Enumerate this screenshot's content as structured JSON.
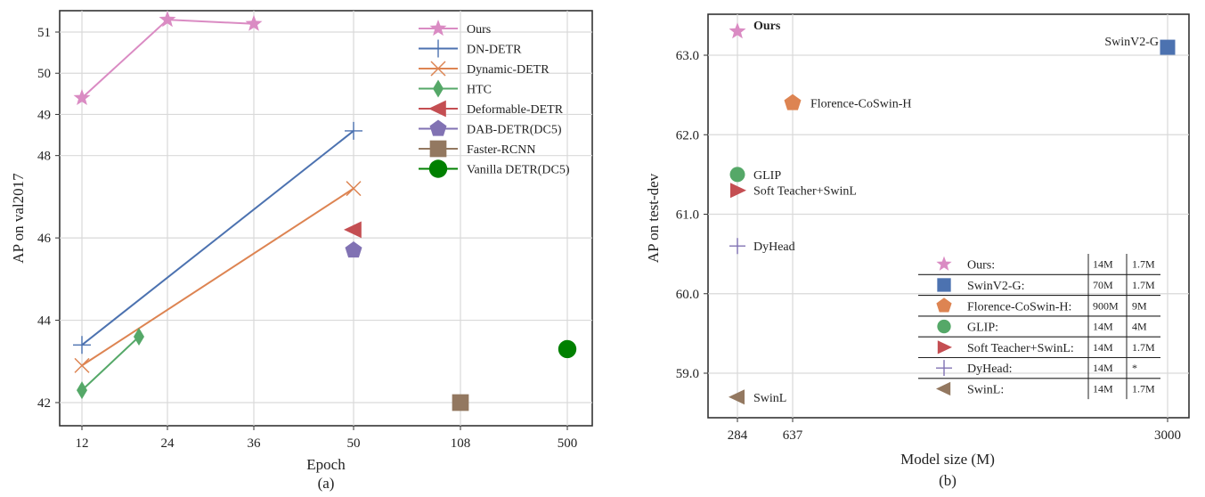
{
  "chart_data": [
    {
      "type": "line",
      "sublabel": "(a)",
      "xlabel": "Epoch",
      "ylabel": "AP on val2017",
      "x_ticks": [
        "12",
        "24",
        "36",
        "50",
        "108",
        "500"
      ],
      "y_ticks": [
        "42",
        "44",
        "46",
        "48",
        "49",
        "50",
        "51"
      ],
      "grid": true,
      "legend_position": "top-right",
      "series": [
        {
          "name": "Ours",
          "marker": "star",
          "color": "#da8bc3",
          "points": [
            {
              "x": "12",
              "y": 49.4
            },
            {
              "x": "24",
              "y": 51.3
            },
            {
              "x": "36",
              "y": 51.2
            }
          ]
        },
        {
          "name": "DN-DETR",
          "marker": "plus",
          "color": "#4c72b0",
          "points": [
            {
              "x": "12",
              "y": 43.4
            },
            {
              "x": "50",
              "y": 48.6
            }
          ]
        },
        {
          "name": "Dynamic-DETR",
          "marker": "x",
          "color": "#dd8452",
          "points": [
            {
              "x": "12",
              "y": 42.9
            },
            {
              "x": "50",
              "y": 47.2
            }
          ]
        },
        {
          "name": "HTC",
          "marker": "diamond",
          "color": "#55a868",
          "points": [
            {
              "x": "12",
              "y": 42.3
            },
            {
              "x": "20",
              "y": 43.6
            }
          ]
        },
        {
          "name": "Deformable-DETR",
          "marker": "triangle-left",
          "color": "#c44e52",
          "points": [
            {
              "x": "50",
              "y": 46.2
            }
          ]
        },
        {
          "name": "DAB-DETR(DC5)",
          "marker": "pentagon",
          "color": "#8172b3",
          "points": [
            {
              "x": "50",
              "y": 45.7
            }
          ]
        },
        {
          "name": "Faster-RCNN",
          "marker": "square",
          "color": "#937860",
          "points": [
            {
              "x": "108",
              "y": 42.0
            }
          ]
        },
        {
          "name": "Vanilla DETR(DC5)",
          "marker": "circle",
          "color": "#008000",
          "points": [
            {
              "x": "500",
              "y": 43.3
            }
          ]
        }
      ]
    },
    {
      "type": "scatter",
      "sublabel": "(b)",
      "xlabel": "Model size (M)",
      "ylabel": "AP on test-dev",
      "x_ticks": [
        "284",
        "637",
        "3000"
      ],
      "y_ticks": [
        "59.0",
        "60.0",
        "61.0",
        "62.0",
        "63.0"
      ],
      "ylim": [
        58.55,
        63.5
      ],
      "grid": true,
      "points": [
        {
          "label": "Ours",
          "x": 284,
          "y": 63.3,
          "marker": "star",
          "color": "#da8bc3",
          "bold": true
        },
        {
          "label": "SwinV2-G",
          "x": 3000,
          "y": 63.1,
          "marker": "square",
          "color": "#4c72b0",
          "bold": false
        },
        {
          "label": "Florence-CoSwin-H",
          "x": 637,
          "y": 62.4,
          "marker": "pentagon",
          "color": "#dd8452",
          "bold": false
        },
        {
          "label": "GLIP",
          "x": 284,
          "y": 61.5,
          "marker": "circle",
          "color": "#55a868",
          "bold": false
        },
        {
          "label": "Soft Teacher+SwinL",
          "x": 284,
          "y": 61.3,
          "marker": "triangle-right",
          "color": "#c44e52",
          "bold": false
        },
        {
          "label": "DyHead",
          "x": 284,
          "y": 60.6,
          "marker": "plus",
          "color": "#8172b3",
          "bold": false
        },
        {
          "label": "SwinL",
          "x": 284,
          "y": 58.7,
          "marker": "triangle-left",
          "color": "#937860",
          "bold": false
        }
      ],
      "legend_table": [
        {
          "label": "Ours:",
          "c1": "14M",
          "c2": "1.7M",
          "marker": "star",
          "color": "#da8bc3"
        },
        {
          "label": "SwinV2-G:",
          "c1": "70M",
          "c2": "1.7M",
          "marker": "square",
          "color": "#4c72b0"
        },
        {
          "label": "Florence-CoSwin-H:",
          "c1": "900M",
          "c2": "9M",
          "marker": "pentagon",
          "color": "#dd8452"
        },
        {
          "label": "GLIP:",
          "c1": "14M",
          "c2": "4M",
          "marker": "circle",
          "color": "#55a868"
        },
        {
          "label": "Soft Teacher+SwinL:",
          "c1": "14M",
          "c2": "1.7M",
          "marker": "triangle-right",
          "color": "#c44e52"
        },
        {
          "label": "DyHead:",
          "c1": "14M",
          "c2": "*",
          "marker": "plus",
          "color": "#8172b3"
        },
        {
          "label": "SwinL:",
          "c1": "14M",
          "c2": "1.7M",
          "marker": "triangle-left",
          "color": "#937860"
        }
      ]
    }
  ]
}
